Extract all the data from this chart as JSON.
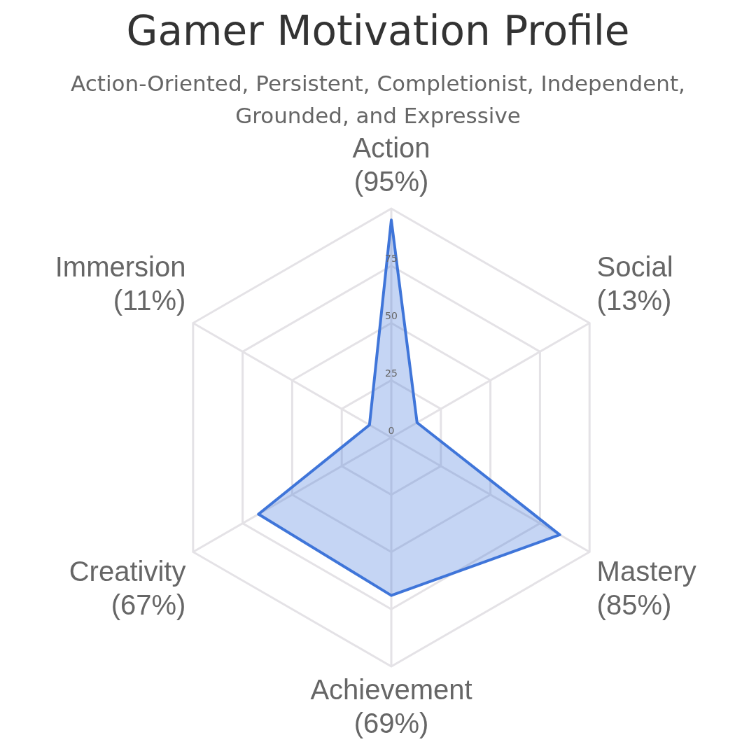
{
  "chart_data": {
    "type": "radar",
    "title": "Gamer Motivation Profile",
    "subtitle": "Action-Oriented, Persistent, Completionist, Independent, Grounded, and Expressive",
    "categories": [
      "Action (95%)",
      "Social (13%)",
      "Mastery (85%)",
      "Achievement (69%)",
      "Creativity (67%)",
      "Immersion (11%)"
    ],
    "series": [
      {
        "color": "#3f75d9",
        "values": [
          95,
          13,
          85,
          69,
          67,
          11
        ]
      }
    ],
    "ylim": [
      0,
      100
    ],
    "yticks": [
      0,
      25,
      50,
      75
    ],
    "grid": true,
    "legend": false,
    "marker": "none"
  }
}
